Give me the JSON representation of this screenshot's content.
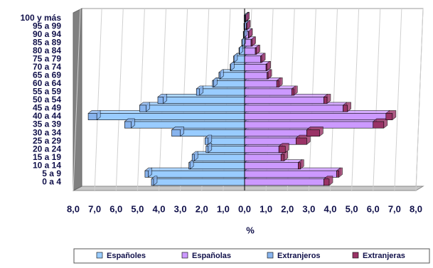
{
  "chart_data": {
    "type": "bar",
    "orientation": "horizontal",
    "stacked": true,
    "categories": [
      "0 a 4",
      "5 a 9",
      "10 a 14",
      "15 a 19",
      "20 a 24",
      "25 a 29",
      "30 a 34",
      "35 a 39",
      "40 a 44",
      "45 a 49",
      "50 a 54",
      "55 a 59",
      "60 a 64",
      "65 a 69",
      "70 a 74",
      "75 a 79",
      "80 a 84",
      "85 a 89",
      "90 a 94",
      "95 a 99",
      "100 y más"
    ],
    "series": [
      {
        "name": "Españoles",
        "color": "#99ccff",
        "values": [
          -4.25,
          -4.5,
          -2.55,
          -2.35,
          -1.7,
          -1.7,
          -3.0,
          -5.3,
          -6.9,
          -4.6,
          -3.8,
          -2.1,
          -1.45,
          -1.15,
          -0.65,
          -0.5,
          -0.25,
          -0.12,
          -0.05,
          -0.02,
          -0.01
        ]
      },
      {
        "name": "Españolas",
        "color": "#cc99ff",
        "values": [
          3.7,
          4.3,
          2.5,
          1.7,
          1.6,
          2.4,
          2.9,
          6.0,
          6.6,
          4.6,
          3.7,
          2.2,
          1.5,
          1.05,
          1.0,
          0.75,
          0.5,
          0.3,
          0.18,
          0.08,
          0.04
        ]
      },
      {
        "name": "Extranjeros",
        "color": "#88b4ee",
        "values": [
          -0.1,
          -0.15,
          -0.05,
          -0.1,
          -0.1,
          -0.15,
          -0.4,
          -0.3,
          -0.4,
          -0.3,
          -0.25,
          -0.15,
          -0.05,
          -0.05,
          -0.02,
          -0.01,
          -0.01,
          -0.01,
          -0.01,
          -0.01,
          -0.01
        ]
      },
      {
        "name": "Extranjeras",
        "color": "#993366",
        "values": [
          0.25,
          0.1,
          0.1,
          0.15,
          0.3,
          0.5,
          0.6,
          0.5,
          0.3,
          0.2,
          0.15,
          0.1,
          0.1,
          0.05,
          0.05,
          0.05,
          0.05,
          0.05,
          0.02,
          0.02,
          0.01
        ]
      }
    ],
    "xlabel": "%",
    "xlim": [
      -8,
      8
    ],
    "xticks": [
      {
        "value": -8,
        "label": "8,0"
      },
      {
        "value": -7,
        "label": "7,0"
      },
      {
        "value": -6,
        "label": "6,0"
      },
      {
        "value": -5,
        "label": "5,0"
      },
      {
        "value": -4,
        "label": "4,0"
      },
      {
        "value": -3,
        "label": "3,0"
      },
      {
        "value": -2,
        "label": "2,0"
      },
      {
        "value": -1,
        "label": "1,0"
      },
      {
        "value": 0,
        "label": "0,0"
      },
      {
        "value": 1,
        "label": "1,0"
      },
      {
        "value": 2,
        "label": "2,0"
      },
      {
        "value": 3,
        "label": "3,0"
      },
      {
        "value": 4,
        "label": "4,0"
      },
      {
        "value": 5,
        "label": "5,0"
      },
      {
        "value": 6,
        "label": "6,0"
      },
      {
        "value": 7,
        "label": "7,0"
      },
      {
        "value": 8,
        "label": "8,0"
      }
    ],
    "grid": true,
    "legend": "bottom"
  }
}
